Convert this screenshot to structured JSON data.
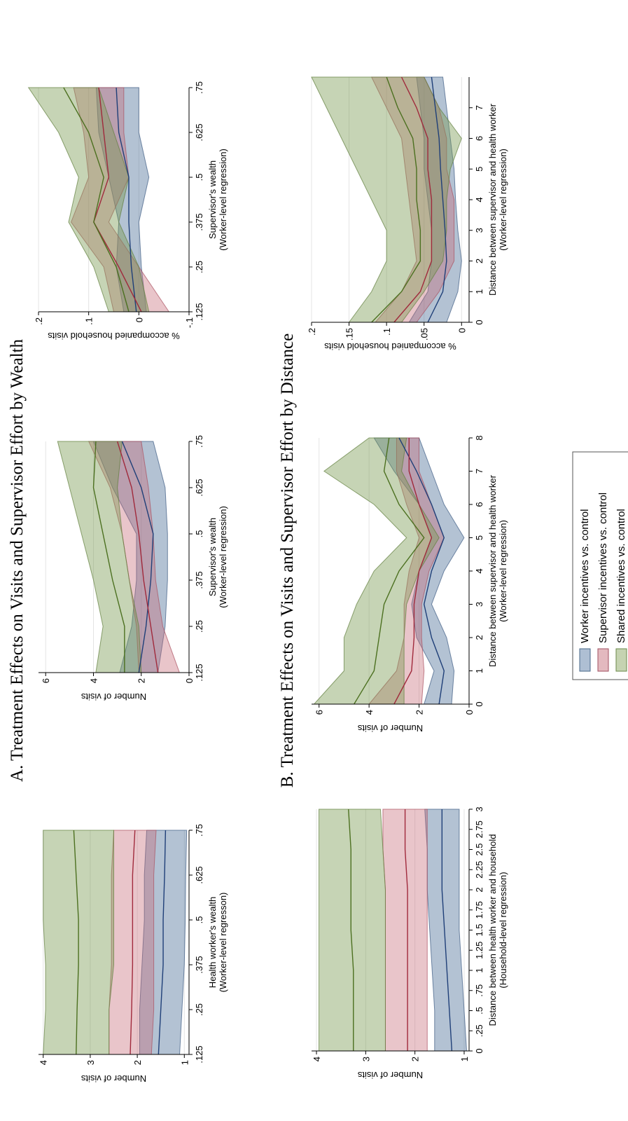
{
  "figure": {
    "panel_a_title": "A. Treatment Effects on Visits and Supervisor Effort by Wealth",
    "panel_b_title": "B. Treatment Effects on Visits and Supervisor Effort by Distance"
  },
  "legend": {
    "items": [
      {
        "label": "Worker incentives vs. control",
        "color": "#2c5282"
      },
      {
        "label": "Supervisor incentives vs. control",
        "color": "#b03a4a"
      },
      {
        "label": "Shared incentives vs. control",
        "color": "#5a7d2a"
      }
    ]
  },
  "chart_data": [
    {
      "id": "A1",
      "type": "area",
      "xlabel": "Health worker's wealth",
      "xlabel2": "(Worker-level regresson)",
      "ylabel": "Number of visits",
      "xlim": [
        0.125,
        0.75
      ],
      "ylim": [
        0.9,
        4.1
      ],
      "xticks": [
        0.125,
        0.25,
        0.375,
        0.5,
        0.625,
        0.75
      ],
      "xticklabels": [
        ".125",
        ".25",
        ".375",
        ".5",
        ".625",
        ".75"
      ],
      "yticks": [
        1,
        2,
        3,
        4
      ],
      "yticklabels": [
        "1",
        "2",
        "3",
        "4"
      ],
      "x": [
        0.125,
        0.25,
        0.375,
        0.5,
        0.625,
        0.75
      ],
      "series": [
        {
          "name": "Worker incentives vs. control",
          "mid": [
            1.55,
            1.5,
            1.45,
            1.45,
            1.42,
            1.4
          ],
          "lo": [
            1.1,
            1.05,
            1.0,
            0.98,
            0.97,
            0.95
          ],
          "hi": [
            1.95,
            1.95,
            1.9,
            1.85,
            1.85,
            1.8
          ]
        },
        {
          "name": "Supervisor incentives vs. control",
          "mid": [
            2.15,
            2.12,
            2.1,
            2.1,
            2.1,
            2.05
          ],
          "lo": [
            1.7,
            1.65,
            1.65,
            1.65,
            1.65,
            1.6
          ],
          "hi": [
            2.6,
            2.6,
            2.55,
            2.55,
            2.55,
            2.5
          ]
        },
        {
          "name": "Shared incentives vs. control",
          "mid": [
            3.3,
            3.28,
            3.25,
            3.25,
            3.3,
            3.35
          ],
          "lo": [
            2.6,
            2.6,
            2.5,
            2.5,
            2.5,
            2.5
          ],
          "hi": [
            4.0,
            3.95,
            3.95,
            4.0,
            4.0,
            4.0
          ]
        }
      ]
    },
    {
      "id": "A2",
      "type": "area",
      "xlabel": "Supervisor's wealth",
      "xlabel2": "(Worker-level regression)",
      "ylabel": "Number of visits",
      "xlim": [
        0.125,
        0.75
      ],
      "ylim": [
        0,
        6.3
      ],
      "xticks": [
        0.125,
        0.25,
        0.375,
        0.5,
        0.625,
        0.75
      ],
      "xticklabels": [
        ".125",
        ".25",
        ".375",
        ".5",
        ".625",
        ".75"
      ],
      "yticks": [
        0,
        2,
        4,
        6
      ],
      "yticklabels": [
        "0",
        "2",
        "4",
        "6"
      ],
      "x": [
        0.125,
        0.25,
        0.375,
        0.5,
        0.625,
        0.75
      ],
      "series": [
        {
          "name": "Worker incentives vs. control",
          "mid": [
            2.1,
            1.8,
            1.6,
            1.5,
            2.0,
            2.8
          ],
          "lo": [
            1.3,
            1.0,
            0.9,
            0.9,
            1.0,
            1.5
          ],
          "hi": [
            2.9,
            2.4,
            2.2,
            2.2,
            3.2,
            4.0
          ]
        },
        {
          "name": "Supervisor incentives vs. control",
          "mid": [
            1.3,
            1.6,
            1.9,
            2.1,
            2.4,
            3.0
          ],
          "lo": [
            0.4,
            1.1,
            1.4,
            1.5,
            1.7,
            2.0
          ],
          "hi": [
            2.1,
            2.2,
            2.5,
            2.8,
            3.3,
            4.2
          ]
        },
        {
          "name": "Shared incentives vs. control",
          "mid": [
            2.7,
            2.7,
            3.2,
            3.6,
            4.0,
            3.9
          ],
          "lo": [
            2.0,
            2.1,
            2.5,
            2.8,
            3.0,
            2.8
          ],
          "hi": [
            3.9,
            3.6,
            4.0,
            4.5,
            5.0,
            5.5
          ]
        }
      ]
    },
    {
      "id": "A3",
      "type": "area",
      "xlabel": "Supervisor's wealth",
      "xlabel2": "(Worker-level regression)",
      "ylabel": "% accompanied household visits",
      "xlim": [
        0.125,
        0.75
      ],
      "ylim": [
        -0.1,
        0.2
      ],
      "xticks": [
        0.125,
        0.25,
        0.375,
        0.5,
        0.625,
        0.75
      ],
      "xticklabels": [
        ".125",
        ".25",
        ".375",
        ".5",
        ".625",
        ".75"
      ],
      "yticks": [
        -0.1,
        0,
        0.1,
        0.2
      ],
      "yticklabels": [
        "-.1",
        "0",
        ".1",
        ".2"
      ],
      "x": [
        0.125,
        0.25,
        0.375,
        0.5,
        0.625,
        0.75
      ],
      "series": [
        {
          "name": "Worker incentives vs. control",
          "mid": [
            0.005,
            0.015,
            0.02,
            0.02,
            0.04,
            0.045
          ],
          "lo": [
            -0.015,
            -0.005,
            0.0,
            -0.02,
            0.0,
            0.0
          ],
          "hi": [
            0.03,
            0.045,
            0.04,
            0.06,
            0.08,
            0.085
          ]
        },
        {
          "name": "Supervisor incentives vs. control",
          "mid": [
            -0.005,
            0.04,
            0.09,
            0.06,
            0.07,
            0.08
          ],
          "lo": [
            -0.06,
            0.0,
            0.06,
            0.02,
            0.03,
            0.03
          ],
          "hi": [
            0.05,
            0.07,
            0.135,
            0.1,
            0.11,
            0.13
          ]
        },
        {
          "name": "Shared incentives vs. control",
          "mid": [
            0.02,
            0.045,
            0.09,
            0.07,
            0.1,
            0.15
          ],
          "lo": [
            -0.02,
            0.0,
            0.04,
            0.02,
            0.05,
            0.08
          ],
          "hi": [
            0.06,
            0.09,
            0.14,
            0.12,
            0.16,
            0.22
          ]
        }
      ]
    },
    {
      "id": "B1",
      "type": "area",
      "xlabel": "Distance between health worker and household",
      "xlabel2": "(Household-level regression)",
      "ylabel": "Number of visits",
      "xlim": [
        0,
        3
      ],
      "ylim": [
        0.9,
        4.1
      ],
      "xticks": [
        0,
        0.25,
        0.5,
        0.75,
        1,
        1.25,
        1.5,
        1.75,
        2,
        2.25,
        2.5,
        2.75,
        3
      ],
      "xticklabels": [
        "0",
        ".25",
        ".5",
        ".75",
        "1",
        "1.25",
        "1.5",
        "1.75",
        "2",
        "2.25",
        "2.5",
        "2.75",
        "3"
      ],
      "yticks": [
        1,
        2,
        3,
        4
      ],
      "yticklabels": [
        "1",
        "2",
        "3",
        "4"
      ],
      "x": [
        0,
        0.5,
        1,
        1.5,
        2,
        2.5,
        3
      ],
      "series": [
        {
          "name": "Worker incentives vs. control",
          "mid": [
            1.25,
            1.3,
            1.35,
            1.4,
            1.45,
            1.45,
            1.45
          ],
          "lo": [
            0.95,
            1.0,
            1.05,
            1.1,
            1.1,
            1.1,
            1.1
          ],
          "hi": [
            1.6,
            1.6,
            1.65,
            1.7,
            1.75,
            1.75,
            1.8
          ]
        },
        {
          "name": "Supervisor incentives vs. control",
          "mid": [
            2.15,
            2.15,
            2.15,
            2.15,
            2.15,
            2.2,
            2.2
          ],
          "lo": [
            1.75,
            1.75,
            1.75,
            1.75,
            1.75,
            1.75,
            1.75
          ],
          "hi": [
            2.6,
            2.6,
            2.6,
            2.6,
            2.6,
            2.65,
            2.65
          ]
        },
        {
          "name": "Shared incentives vs. control",
          "mid": [
            3.25,
            3.25,
            3.25,
            3.3,
            3.3,
            3.3,
            3.35
          ],
          "lo": [
            2.6,
            2.6,
            2.6,
            2.6,
            2.6,
            2.65,
            2.7
          ],
          "hi": [
            3.95,
            3.95,
            3.95,
            3.95,
            3.95,
            3.95,
            3.95
          ]
        }
      ]
    },
    {
      "id": "B2",
      "type": "area",
      "xlabel": "Distance between supervisor and health worker",
      "xlabel2": "(Worker-level regression)",
      "ylabel": "Number of visits",
      "xlim": [
        0,
        8
      ],
      "ylim": [
        0,
        6.3
      ],
      "xticks": [
        0,
        1,
        2,
        3,
        4,
        5,
        6,
        7,
        8
      ],
      "xticklabels": [
        "0",
        "1",
        "2",
        "3",
        "4",
        "5",
        "6",
        "7",
        "8"
      ],
      "yticks": [
        0,
        2,
        4,
        6
      ],
      "yticklabels": [
        "0",
        "2",
        "4",
        "6"
      ],
      "x": [
        0,
        1,
        2,
        3,
        4,
        5,
        6,
        7,
        8
      ],
      "series": [
        {
          "name": "Worker incentives vs. control",
          "mid": [
            1.2,
            1.0,
            1.5,
            1.8,
            1.5,
            1.0,
            1.5,
            2.1,
            2.8
          ],
          "lo": [
            0.7,
            0.6,
            0.9,
            1.5,
            1.0,
            0.2,
            1.0,
            1.5,
            2.0
          ],
          "hi": [
            1.8,
            1.4,
            2.1,
            2.3,
            2.0,
            1.5,
            2.0,
            3.0,
            3.8
          ]
        },
        {
          "name": "Supervisor incentives vs. control",
          "mid": [
            3.0,
            2.3,
            2.2,
            2.2,
            2.0,
            1.5,
            2.0,
            2.4,
            2.4
          ],
          "lo": [
            1.9,
            1.8,
            1.9,
            1.9,
            1.6,
            1.0,
            1.5,
            2.0,
            2.0
          ],
          "hi": [
            4.0,
            2.9,
            2.6,
            2.6,
            2.4,
            2.0,
            2.5,
            2.9,
            2.9
          ]
        },
        {
          "name": "Shared incentives vs. control",
          "mid": [
            4.6,
            3.8,
            3.6,
            3.4,
            2.8,
            1.8,
            2.8,
            3.4,
            3.2
          ],
          "lo": [
            2.6,
            2.6,
            2.6,
            2.5,
            2.0,
            1.2,
            2.0,
            2.7,
            2.5
          ],
          "hi": [
            6.2,
            5.0,
            5.0,
            4.5,
            3.8,
            2.5,
            3.8,
            5.8,
            4.0
          ]
        }
      ]
    },
    {
      "id": "B3",
      "type": "area",
      "xlabel": "Distance between supervisor and health worker",
      "xlabel2": "(Worker-level regression)",
      "ylabel": "% accompanied household visits",
      "xlim": [
        0,
        8
      ],
      "ylim": [
        -0.01,
        0.2
      ],
      "xticks": [
        0,
        1,
        2,
        3,
        4,
        5,
        6,
        7
      ],
      "xticklabels": [
        "0",
        "1",
        "2",
        "3",
        "4",
        "5",
        "6",
        "7"
      ],
      "yticks": [
        0,
        0.05,
        0.1,
        0.15,
        0.2
      ],
      "yticklabels": [
        "0",
        ".05",
        ".1",
        ".15",
        ".2"
      ],
      "x": [
        0,
        1,
        2,
        3,
        4,
        5,
        6,
        7,
        8
      ],
      "series": [
        {
          "name": "Worker incentives vs. control",
          "mid": [
            0.045,
            0.025,
            0.02,
            0.022,
            0.025,
            0.028,
            0.03,
            0.035,
            0.04
          ],
          "lo": [
            0.02,
            0.005,
            0.0,
            0.005,
            0.008,
            0.01,
            0.015,
            0.02,
            0.025
          ],
          "hi": [
            0.07,
            0.045,
            0.04,
            0.04,
            0.045,
            0.05,
            0.05,
            0.055,
            0.06
          ]
        },
        {
          "name": "Supervisor incentives vs. control",
          "mid": [
            0.09,
            0.055,
            0.04,
            0.04,
            0.04,
            0.045,
            0.045,
            0.06,
            0.08
          ],
          "lo": [
            0.06,
            0.03,
            0.01,
            0.01,
            0.01,
            0.02,
            0.02,
            0.03,
            0.05
          ],
          "hi": [
            0.115,
            0.08,
            0.06,
            0.065,
            0.07,
            0.075,
            0.08,
            0.1,
            0.12
          ]
        },
        {
          "name": "Shared incentives vs. control",
          "mid": [
            0.12,
            0.08,
            0.055,
            0.055,
            0.06,
            0.06,
            0.065,
            0.085,
            0.1
          ],
          "lo": [
            0.08,
            0.05,
            0.025,
            0.02,
            0.02,
            0.015,
            0.0,
            0.03,
            0.05
          ],
          "hi": [
            0.15,
            0.12,
            0.1,
            0.1,
            0.12,
            0.14,
            0.16,
            0.18,
            0.2
          ]
        }
      ]
    }
  ]
}
